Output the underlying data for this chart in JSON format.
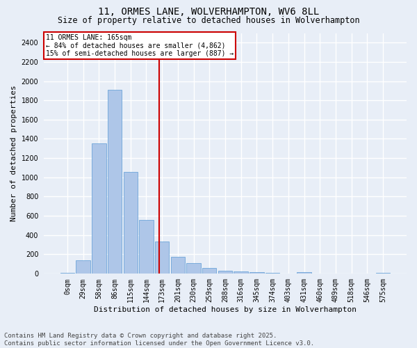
{
  "title": "11, ORMES LANE, WOLVERHAMPTON, WV6 8LL",
  "subtitle": "Size of property relative to detached houses in Wolverhampton",
  "xlabel": "Distribution of detached houses by size in Wolverhampton",
  "ylabel": "Number of detached properties",
  "categories": [
    "0sqm",
    "29sqm",
    "58sqm",
    "86sqm",
    "115sqm",
    "144sqm",
    "173sqm",
    "201sqm",
    "230sqm",
    "259sqm",
    "288sqm",
    "316sqm",
    "345sqm",
    "374sqm",
    "403sqm",
    "431sqm",
    "460sqm",
    "489sqm",
    "518sqm",
    "546sqm",
    "575sqm"
  ],
  "values": [
    10,
    135,
    1355,
    1910,
    1055,
    560,
    330,
    170,
    108,
    55,
    30,
    20,
    14,
    5,
    0,
    12,
    0,
    0,
    0,
    0,
    10
  ],
  "bar_color": "#aec6e8",
  "bar_edge_color": "#5b9bd5",
  "vline_x": 5.82,
  "vline_color": "#cc0000",
  "annotation_title": "11 ORMES LANE: 165sqm",
  "annotation_line2": "← 84% of detached houses are smaller (4,862)",
  "annotation_line3": "15% of semi-detached houses are larger (887) →",
  "annotation_box_color": "#cc0000",
  "background_color": "#e8eef7",
  "grid_color": "#ffffff",
  "ylim": [
    0,
    2500
  ],
  "yticks": [
    0,
    200,
    400,
    600,
    800,
    1000,
    1200,
    1400,
    1600,
    1800,
    2000,
    2200,
    2400
  ],
  "footer_line1": "Contains HM Land Registry data © Crown copyright and database right 2025.",
  "footer_line2": "Contains public sector information licensed under the Open Government Licence v3.0.",
  "title_fontsize": 10,
  "subtitle_fontsize": 8.5,
  "axis_label_fontsize": 8,
  "tick_fontsize": 7,
  "footer_fontsize": 6.5,
  "annotation_fontsize": 7
}
